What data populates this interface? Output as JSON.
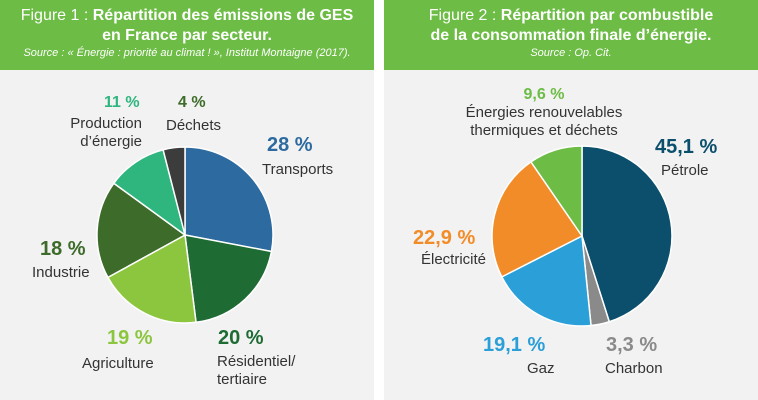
{
  "figures": [
    {
      "prefix": "Figure 1 : ",
      "title_line1": "Répartition des émissions de GES",
      "title_line2": "en France par secteur.",
      "source": "Source : « Énergie : priorité au climat ! », Institut Montaigne (2017).",
      "labels": [
        {
          "pct": "28 %",
          "label": "Transports"
        },
        {
          "pct": "20 %",
          "label": "Résidentiel/\ntertiaire"
        },
        {
          "pct": "19 %",
          "label": "Agriculture"
        },
        {
          "pct": "18 %",
          "label": "Industrie"
        },
        {
          "pct": "11 %",
          "label": "Production\nd’énergie"
        },
        {
          "pct": "4 %",
          "label": "Déchets"
        }
      ]
    },
    {
      "prefix": "Figure 2 : ",
      "title_line1": "Répartition par combustible",
      "title_line2": "de la consommation finale d’énergie.",
      "source": "Source : Op. Cit.",
      "labels": [
        {
          "pct": "45,1 %",
          "label": "Pétrole"
        },
        {
          "pct": "3,3 %",
          "label": "Charbon"
        },
        {
          "pct": "19,1 %",
          "label": "Gaz"
        },
        {
          "pct": "22,9 %",
          "label": "Électricité"
        },
        {
          "pct": "9,6 %",
          "label": "Énergies renouvelables\nthermiques et déchets"
        }
      ]
    }
  ],
  "chart_data": [
    {
      "type": "pie",
      "title": "Répartition des émissions de GES en France par secteur.",
      "categories": [
        "Transports",
        "Résidentiel/tertiaire",
        "Agriculture",
        "Industrie",
        "Production d’énergie",
        "Déchets"
      ],
      "values": [
        28,
        20,
        19,
        18,
        11,
        4
      ],
      "colors": [
        "#2d6a9f",
        "#1e6b34",
        "#8cc63e",
        "#3d6b2a",
        "#2fb67e",
        "#3c3c3c"
      ],
      "label_colors": [
        "#2d6a9f",
        "#1e6b34",
        "#8cc63e",
        "#3d6b2a",
        "#2fb67e",
        "#3d6b2a"
      ]
    },
    {
      "type": "pie",
      "title": "Répartition par combustible de la consommation finale d’énergie.",
      "categories": [
        "Pétrole",
        "Charbon",
        "Gaz",
        "Électricité",
        "Énergies renouvelables thermiques et déchets"
      ],
      "values": [
        45.1,
        3.3,
        19.1,
        22.9,
        9.6
      ],
      "colors": [
        "#0b4f6c",
        "#8a8a8a",
        "#2a9fd8",
        "#f28c28",
        "#6cbc45"
      ],
      "label_colors": [
        "#0b4f6c",
        "#8a8a8a",
        "#2a9fd8",
        "#f28c28",
        "#6cbc45"
      ]
    }
  ]
}
